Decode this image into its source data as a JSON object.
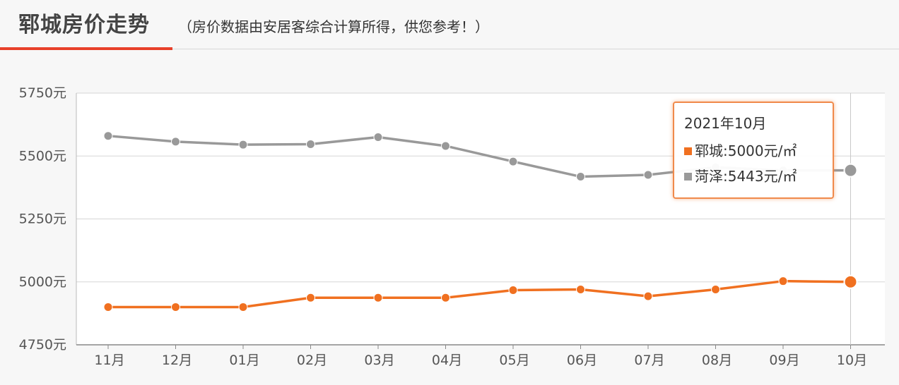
{
  "header": {
    "title": "郓城房价走势",
    "subtitle": "（房价数据由安居客综合计算所得，供您参考！）",
    "accent_color": "#e8402a"
  },
  "tooltip": {
    "title": "2021年10月",
    "rows": [
      {
        "label": "郓城:5000元/㎡",
        "color": "#f07020"
      },
      {
        "label": "菏泽:5443元/㎡",
        "color": "#999999"
      }
    ]
  },
  "chart_data": {
    "type": "line",
    "x": [
      "11月",
      "12月",
      "01月",
      "02月",
      "03月",
      "04月",
      "05月",
      "06月",
      "07月",
      "08月",
      "09月",
      "10月"
    ],
    "ylim": [
      4750,
      5750
    ],
    "yticks": [
      5750,
      5500,
      5250,
      5000,
      4750
    ],
    "ytick_labels": [
      "5750元",
      "5500元",
      "5250元",
      "5000元",
      "4750元"
    ],
    "grid": true,
    "series": [
      {
        "name": "菏泽",
        "color": "#999999",
        "values": [
          5580,
          5557,
          5545,
          5547,
          5575,
          5540,
          5478,
          5418,
          5425,
          5455,
          5443,
          5443
        ]
      },
      {
        "name": "郓城",
        "color": "#f07020",
        "values": [
          4900,
          4900,
          4900,
          4937,
          4937,
          4937,
          4967,
          4970,
          4943,
          4970,
          5003,
          5000
        ]
      }
    ]
  }
}
